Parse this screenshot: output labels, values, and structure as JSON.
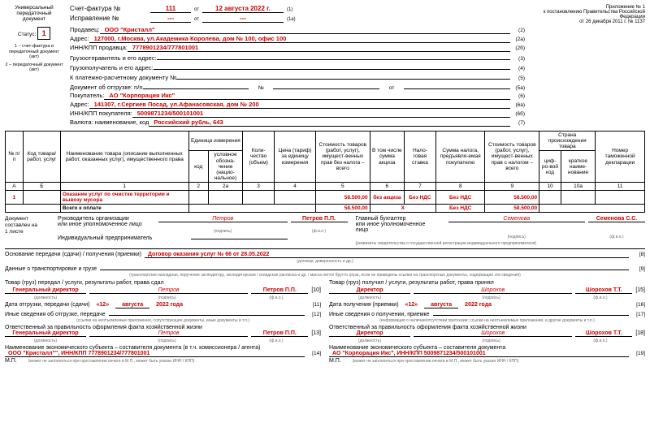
{
  "appendix": {
    "l1": "Приложение № 1",
    "l2": "к постановлению Правительства Российской Федерации",
    "l3": "от 26 декабря 2011 г. № 1137"
  },
  "leftCol": {
    "title": "Универсальный передаточный документ",
    "statusLabel": "Статус:",
    "status": "1",
    "fine1": "1 – счет-фактура и передаточный документ (акт)",
    "fine2": "2 – передаточный документ (акт)"
  },
  "invoice": {
    "lbl": "Счет-фактура №",
    "num": "111",
    "from": "от",
    "date": "12 августа 2022 г.",
    "sfx": "(1)",
    "corrLbl": "Исправление №",
    "corrNum": "---",
    "corrDate": "---",
    "corrSfx": "(1а)"
  },
  "fields": [
    {
      "l": "Продавец:",
      "v": "ООО \"Кристалл\"",
      "n": "(2)"
    },
    {
      "l": "Адрес:",
      "v": "127000, г.Москва, ул.Академика Королева, дом № 100, офис 100",
      "n": "(2а)"
    },
    {
      "l": "ИНН/КПП продавца:",
      "v": "7778901234/777801001",
      "n": "(2б)"
    },
    {
      "l": "Грузоотправитель и его адрес:",
      "v": "",
      "n": "(3)"
    },
    {
      "l": "Грузополучатель и его адрес:",
      "v": "",
      "n": "(4)"
    },
    {
      "l": "К платежно-расчетному документу №",
      "v": "",
      "n": "(5)"
    },
    {
      "l": "Документ об отгрузке: n/n",
      "v": "",
      "sp": "№",
      "sp2": "от",
      "n": "(5а)"
    },
    {
      "l": "Покупатель:",
      "v": "АО \"Корпорация Икс\"",
      "n": "(6)"
    },
    {
      "l": "Адрес:",
      "v": "141307, г.Сергиев Посад, ул.Афанасовская, дом № 200",
      "n": "(6а)"
    },
    {
      "l": "ИНН/КПП покупателя:",
      "v": "5009871234/500101001",
      "n": "(6б)"
    },
    {
      "l": "Валюта: наименование, код",
      "v": "Российский рубль, 643",
      "n": "(7)"
    }
  ],
  "thead": {
    "c0": "№ п/п",
    "c1": "Код товара/ работ, услуг",
    "c2": "Наименование товара (описание выполненных работ, оказанных услуг), имущественного права",
    "c3": "Единица измерения",
    "c3a": "код",
    "c3b": "условное обозна-чение (нацио-нальное)",
    "c4": "Коли-чество (объем)",
    "c5": "Цена (тариф) за единицу измерения",
    "c6": "Стоимость товаров (работ, услуг), имущест-венных прав без налога – всего",
    "c7": "В том числе сумма акциза",
    "c8": "Нало-говая ставка",
    "c9": "Сумма налога, предъявля-емая покупателю",
    "c10": "Стоимость товаров (работ, услуг), имущест-венных прав с налогом – всего",
    "c11": "Страна происхождения товара",
    "c11a": "циф-ро-вой код",
    "c11b": "краткое наиме-нование",
    "c12": "Номер таможенной декларации"
  },
  "letterRow": [
    "А",
    "Б",
    "1",
    "2",
    "2а",
    "3",
    "4",
    "5",
    "6",
    "7",
    "8",
    "9",
    "10",
    "10а",
    "11"
  ],
  "dataRow": {
    "n": "1",
    "name": "Оказание услуг по очистке территории и вывозу мусора",
    "sum": "58.500,00",
    "excise": "без акциза",
    "rate": "Без НДС",
    "tax": "Без НДС",
    "total": "58.500,00"
  },
  "totalRow": {
    "lbl": "Всего к оплате",
    "sum": "58.500,00",
    "x": "X",
    "total": "58.500,00"
  },
  "doc": {
    "l1": "Документ",
    "l2": "составлен на",
    "l3": "1 листе"
  },
  "sigL": {
    "l1": "Руководитель организации",
    "l2": "или иное уполномоченное лицо",
    "sig": "Петров",
    "name": "Петров П.П.",
    "l3": "Индивидуальный предприниматель"
  },
  "sigR": {
    "l1": "Главный бухгалтер",
    "l2": "или иное уполномоченное",
    "l3": "лицо",
    "sig": "Семенова",
    "name": "Семенова С.С."
  },
  "hints": {
    "sig": "(подпись)",
    "fio": "(ф.и.о.)",
    "pos": "(должность)",
    "ipReq": "(реквизиты свидетельства о государственной регистрации индивидуального предпринимателя)"
  },
  "basis": {
    "l": "Основание передачи (сдачи) / получения (приемки)",
    "v": "Договор оказания услуг № 66 от 28.05.2022",
    "n": "[8]",
    "h": "(договор; доверенность и др.)"
  },
  "transport": {
    "l": "Данные о транспортировке и грузе",
    "n": "[9]",
    "h": "(транспортная накладная, поручение экспедитору, экспедиторская / складская расписка и др. / масса нетто/ брутто груза, если не приведены ссылки на транспортные документы, содержащие эти сведения)"
  },
  "left": {
    "t": "Товар (груз) передал / услуги, результаты работ, права сдал",
    "pos": "Генеральный директор",
    "sig": "Петров",
    "name": "Петров П.П.",
    "n1": "[10]",
    "dateLbl": "Дата отгрузки, передачи (сдачи)",
    "d": "«12»",
    "m": "августа",
    "y": "2022 года",
    "n2": "[11]",
    "other": "Иные сведения об отгрузке, передаче",
    "n3": "[12]",
    "otherH": "(ссылки на неотъемлемые приложения, сопутствующие документы, иные документы и т.п.)",
    "resp": "Ответственный за правильность оформления факта хозяйственной жизни",
    "pos2": "Генеральный директор",
    "sig2": "Петров",
    "name2": "Петров П.П.",
    "n4": "[13]",
    "econ": "Наименование экономического субъекта – составителя документа (в т.ч. комиссионера / агента)",
    "econV": "ООО \"Кристалл\"\", ИНН/КПП 7778901234/777801001",
    "n5": "[14]",
    "mp": "М.П.",
    "mpH": "(может не заполняться при проставлении печати в М.П., может быть указан ИНН / КПП)"
  },
  "right": {
    "t": "Товар (груз) получил / услуги, результаты работ, права принял",
    "pos": "Директор",
    "sig": "Шорохов",
    "name": "Шорохов Т.Т.",
    "n1": "[15]",
    "dateLbl": "Дата получения (приемки)",
    "d": "«12»",
    "m": "августа",
    "y": "2022 года",
    "n2": "[16]",
    "other": "Иные сведения о получении, приемке",
    "n3": "[17]",
    "otherH": "(информация о наличии/отсутствии претензии; ссылки на неотъемлемые приложения, и другие  документы и т.п.)",
    "resp": "Ответственный за правильность оформления факта хозяйственной жизни",
    "pos2": "Директор",
    "sig2": "Шорохов",
    "name2": "Шорохов Т.Т.",
    "n4": "[18]",
    "econ": "Наименование экономического субъекта – составителя документа",
    "econV": "АО \"Корпорация Икс\", ИНН/КПП 5009871234/500101001",
    "n5": "[19]",
    "mp": "М.П.",
    "mpH": "(может не заполняться при проставлении печати в М.П., может быть указан ИНН / КПП)"
  }
}
